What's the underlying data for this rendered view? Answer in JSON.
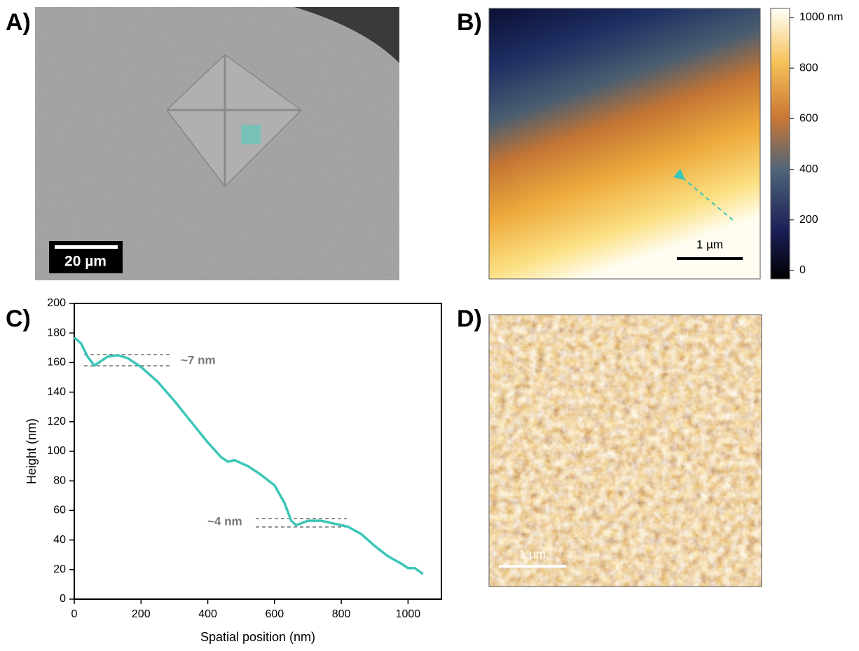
{
  "panel_labels": [
    "A)",
    "B)",
    "C)",
    "D)"
  ],
  "scale_bars": [
    "20 µm",
    "1 µm",
    "1 µm"
  ],
  "chart_data": [
    {
      "type": "line",
      "x_label": "Spatial position (nm)",
      "y_label": "Height (nm)",
      "xlim": [
        0,
        1100
      ],
      "ylim": [
        0,
        200
      ],
      "xticks": [
        0,
        200,
        400,
        600,
        800,
        1000
      ],
      "yticks": [
        0,
        20,
        40,
        60,
        80,
        100,
        120,
        140,
        160,
        180,
        200
      ],
      "annotations": [
        "~7 nm",
        "~4 nm"
      ],
      "series": [
        {
          "name": null,
          "color": "#3cc6b8",
          "x": [
            0,
            20,
            40,
            60,
            80,
            100,
            130,
            160,
            200,
            250,
            300,
            350,
            400,
            440,
            460,
            480,
            520,
            560,
            600,
            630,
            650,
            665,
            700,
            740,
            780,
            820,
            860,
            900,
            940,
            980,
            1000,
            1020,
            1045
          ],
          "values": [
            177,
            173,
            164,
            158,
            161,
            164,
            165,
            163,
            157,
            147,
            134,
            120,
            106,
            96,
            93,
            94,
            90,
            84,
            77,
            65,
            53,
            50,
            53,
            53,
            51,
            49,
            44,
            36,
            29,
            24,
            21,
            21,
            17
          ]
        }
      ]
    },
    {
      "type": "colorbar",
      "ylim": [
        0,
        1000
      ],
      "yticks": [
        0,
        200,
        400,
        600,
        800,
        {
          "value": 1000,
          "label": "1000 nm"
        }
      ]
    }
  ]
}
